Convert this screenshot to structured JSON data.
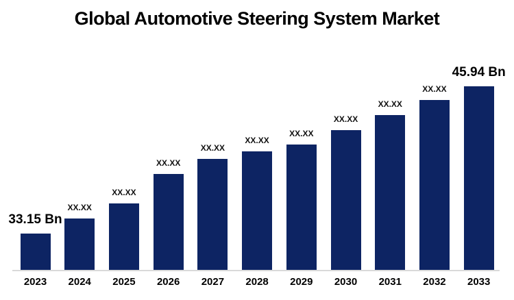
{
  "title": "Global Automotive Steering System Market",
  "chart_data": {
    "type": "bar",
    "title": "Global Automotive Steering System Market",
    "unit": "Bn",
    "categories": [
      "2023",
      "2024",
      "2025",
      "2026",
      "2027",
      "2028",
      "2029",
      "2030",
      "2031",
      "2032",
      "2033"
    ],
    "value_labels": [
      "33.15 Bn",
      "XX.XX",
      "XX.XX",
      "XX.XX",
      "XX.XX",
      "XX.XX",
      "XX.XX",
      "XX.XX",
      "XX.XX",
      "XX.XX",
      "45.94 Bn"
    ],
    "known_values": {
      "2023": 33.15,
      "2033": 45.94
    },
    "est_values": [
      33.15,
      34.46,
      35.77,
      38.33,
      39.64,
      40.29,
      40.89,
      42.14,
      43.44,
      44.75,
      45.94
    ],
    "emphasized_label_indices": [
      0,
      10
    ],
    "ylim": [
      30,
      47
    ],
    "xlabel": "",
    "ylabel": "",
    "grid": false,
    "legend_position": "none",
    "colors": {
      "bar": "#0d2463",
      "axis_line": "#d9d9d9",
      "title_text": "#000000",
      "label_text": "#111111",
      "background": "#ffffff"
    }
  }
}
